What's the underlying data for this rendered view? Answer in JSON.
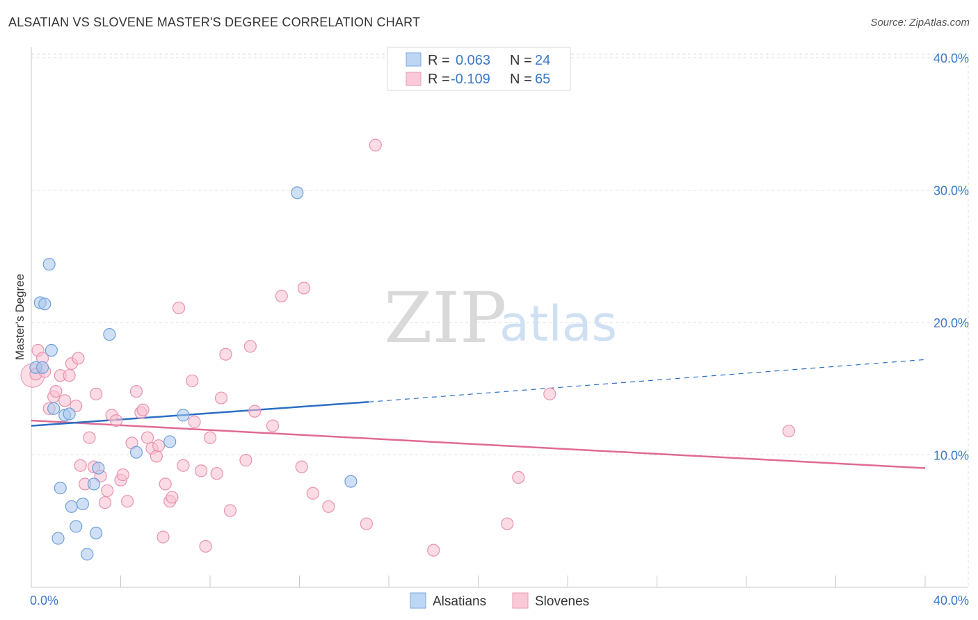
{
  "title": "ALSATIAN VS SLOVENE MASTER'S DEGREE CORRELATION CHART",
  "source": "Source: ZipAtlas.com",
  "watermark": {
    "zip": "ZIP",
    "atlas": "atlas"
  },
  "chart_data": {
    "type": "scatter",
    "title": "ALSATIAN VS SLOVENE MASTER'S DEGREE CORRELATION CHART",
    "xlabel": "",
    "ylabel": "Master's Degree",
    "xlim": [
      0,
      40
    ],
    "ylim": [
      0,
      40
    ],
    "x_tick_labels": [
      "0.0%",
      "40.0%"
    ],
    "y_tick_labels": [
      "10.0%",
      "20.0%",
      "30.0%",
      "40.0%"
    ],
    "y_ticks": [
      10,
      20,
      30,
      40
    ],
    "legend": {
      "entries": [
        {
          "r_label": "R =",
          "r_value": "0.063",
          "n_label": "N =",
          "n_value": "24"
        },
        {
          "r_label": "R =",
          "r_value": "-0.109",
          "n_label": "N =",
          "n_value": "65"
        }
      ]
    },
    "series": [
      {
        "name": "Alsatians",
        "color": "#a7c7ee",
        "stroke": "#6f9fd8",
        "trend_color": "#2b6fc4",
        "trend": {
          "x0": 0,
          "y0": 12.2,
          "x1": 15.1,
          "y1": 14.0,
          "x_dash_end": 40,
          "y_dash_end": 17.2
        },
        "points": [
          [
            0.2,
            16.6
          ],
          [
            0.5,
            16.6
          ],
          [
            0.4,
            21.5
          ],
          [
            0.6,
            21.4
          ],
          [
            0.8,
            24.4
          ],
          [
            0.9,
            17.9
          ],
          [
            1.0,
            13.5
          ],
          [
            1.5,
            13.0
          ],
          [
            1.7,
            13.1
          ],
          [
            1.3,
            7.5
          ],
          [
            1.2,
            3.7
          ],
          [
            1.8,
            6.1
          ],
          [
            2.0,
            4.6
          ],
          [
            2.3,
            6.3
          ],
          [
            2.8,
            7.8
          ],
          [
            2.9,
            4.1
          ],
          [
            3.0,
            9.0
          ],
          [
            3.5,
            19.1
          ],
          [
            2.5,
            2.5
          ],
          [
            4.7,
            10.2
          ],
          [
            6.2,
            11.0
          ],
          [
            6.8,
            13.0
          ],
          [
            11.9,
            29.8
          ],
          [
            14.3,
            8.0
          ]
        ]
      },
      {
        "name": "Slovenes",
        "color": "#f7bfd0",
        "stroke": "#e892ae",
        "trend_color": "#e06a94",
        "trend": {
          "x0": 0,
          "y0": 12.6,
          "x1": 40,
          "y1": 9.0
        },
        "points": [
          [
            0.2,
            16.1
          ],
          [
            0.3,
            17.9
          ],
          [
            0.5,
            17.3
          ],
          [
            0.6,
            16.3
          ],
          [
            0.8,
            13.5
          ],
          [
            1.0,
            14.4
          ],
          [
            1.1,
            14.8
          ],
          [
            1.3,
            16.0
          ],
          [
            1.5,
            14.1
          ],
          [
            1.7,
            16.0
          ],
          [
            1.8,
            16.9
          ],
          [
            2.0,
            13.7
          ],
          [
            2.1,
            17.3
          ],
          [
            2.2,
            9.2
          ],
          [
            2.4,
            7.8
          ],
          [
            2.6,
            11.3
          ],
          [
            2.8,
            9.1
          ],
          [
            2.9,
            14.6
          ],
          [
            3.1,
            8.4
          ],
          [
            3.3,
            6.4
          ],
          [
            3.4,
            7.3
          ],
          [
            3.6,
            13.0
          ],
          [
            3.8,
            12.6
          ],
          [
            4.0,
            8.1
          ],
          [
            4.1,
            8.5
          ],
          [
            4.3,
            6.5
          ],
          [
            4.5,
            10.9
          ],
          [
            4.7,
            14.8
          ],
          [
            4.9,
            13.2
          ],
          [
            5.0,
            13.4
          ],
          [
            5.2,
            11.3
          ],
          [
            5.4,
            10.5
          ],
          [
            5.6,
            9.9
          ],
          [
            5.7,
            10.7
          ],
          [
            5.9,
            3.8
          ],
          [
            6.0,
            7.8
          ],
          [
            6.2,
            6.5
          ],
          [
            6.3,
            6.8
          ],
          [
            6.6,
            21.1
          ],
          [
            6.8,
            9.2
          ],
          [
            7.2,
            15.6
          ],
          [
            7.3,
            12.5
          ],
          [
            7.6,
            8.8
          ],
          [
            7.8,
            3.1
          ],
          [
            8.0,
            11.3
          ],
          [
            8.3,
            8.6
          ],
          [
            8.5,
            14.3
          ],
          [
            8.7,
            17.6
          ],
          [
            8.9,
            5.8
          ],
          [
            9.6,
            9.6
          ],
          [
            9.8,
            18.2
          ],
          [
            10.0,
            13.3
          ],
          [
            10.8,
            12.2
          ],
          [
            11.2,
            22.0
          ],
          [
            12.2,
            22.6
          ],
          [
            12.1,
            9.1
          ],
          [
            12.6,
            7.1
          ],
          [
            13.3,
            6.1
          ],
          [
            15.0,
            4.8
          ],
          [
            15.4,
            33.4
          ],
          [
            18.0,
            2.8
          ],
          [
            21.3,
            4.8
          ],
          [
            21.8,
            8.3
          ],
          [
            23.2,
            14.6
          ],
          [
            33.9,
            11.8
          ]
        ]
      }
    ]
  }
}
